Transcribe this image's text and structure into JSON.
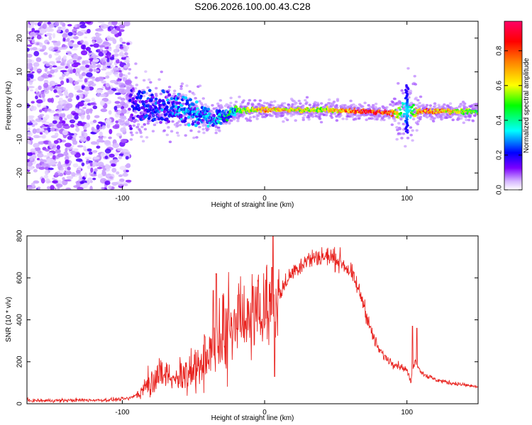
{
  "chart_data": [
    {
      "type": "heatmap",
      "title": "S206.2026.100.00.43.C28",
      "xlabel": "Height of straight line (km)",
      "ylabel": "Frequency (Hz)",
      "xlim": [
        -167,
        150
      ],
      "ylim": [
        -25,
        25
      ],
      "xticks": [
        -100,
        0,
        100
      ],
      "yticks": [
        -20,
        -10,
        0,
        10,
        20
      ],
      "grid": false,
      "colorbar": {
        "label": "Normalized spectral amplitude",
        "range": [
          0.0,
          0.97
        ],
        "ticks": [
          0.0,
          0.2,
          0.4,
          0.6,
          0.8
        ],
        "colormap": [
          "#ffffff",
          "#d6b8ff",
          "#7b00ff",
          "#0000ff",
          "#00ffff",
          "#00ff00",
          "#ffff00",
          "#ff8000",
          "#ff0000",
          "#ff0066"
        ]
      },
      "description_points": [
        {
          "height": -160,
          "freq_spread": [
            -25,
            25
          ],
          "amplitude": 0.1
        },
        {
          "height": -95,
          "freq_spread": [
            -25,
            25
          ],
          "amplitude": 0.1
        },
        {
          "height": -90,
          "freq_center": 0,
          "freq_spread": [
            -5,
            5
          ],
          "amplitude": 0.2
        },
        {
          "height": -60,
          "freq_center": -1,
          "freq_spread": [
            -4,
            4
          ],
          "amplitude": 0.3
        },
        {
          "height": -35,
          "freq_center": -4,
          "freq_spread": [
            -6,
            -2
          ],
          "amplitude": 0.3
        },
        {
          "height": -20,
          "freq_center": -1.5,
          "freq_spread": [
            -3,
            0
          ],
          "amplitude": 0.5
        },
        {
          "height": 0,
          "freq_center": -1.2,
          "freq_spread": [
            -2.5,
            0
          ],
          "amplitude": 0.75
        },
        {
          "height": 40,
          "freq_center": -1.3,
          "freq_spread": [
            -2.5,
            0
          ],
          "amplitude": 0.6
        },
        {
          "height": 70,
          "freq_center": -1.7,
          "freq_spread": [
            -3,
            -0.5
          ],
          "amplitude": 0.9
        },
        {
          "height": 87,
          "freq_center": -2.2,
          "freq_spread": [
            -3,
            -1
          ],
          "amplitude": 0.9
        },
        {
          "height": 100,
          "freq_center": -1.5,
          "freq_spread": [
            -8,
            6
          ],
          "amplitude": 0.3
        },
        {
          "height": 110,
          "freq_center": -1.7,
          "freq_spread": [
            -3,
            -0.5
          ],
          "amplitude": 0.85
        },
        {
          "height": 150,
          "freq_center": -1.8,
          "freq_spread": [
            -3,
            -0.5
          ],
          "amplitude": 0.5
        }
      ]
    },
    {
      "type": "line",
      "title": "",
      "xlabel": "Height of straight line (km)",
      "ylabel": "SNR (10 * v/v)",
      "xlim": [
        -167,
        150
      ],
      "ylim": [
        0,
        800
      ],
      "xticks": [
        -100,
        0,
        100
      ],
      "yticks": [
        0,
        200,
        400,
        600,
        800
      ],
      "grid": false,
      "series": [
        {
          "name": "SNR",
          "color": "#e8231f",
          "x": [
            -167,
            -150,
            -130,
            -110,
            -95,
            -88,
            -82,
            -75,
            -70,
            -62,
            -55,
            -48,
            -40,
            -35,
            -30,
            -25,
            -18,
            -10,
            -5,
            0,
            5,
            8,
            10,
            15,
            20,
            25,
            30,
            35,
            40,
            45,
            50,
            55,
            60,
            65,
            70,
            75,
            80,
            85,
            90,
            95,
            100,
            103,
            104,
            106,
            108,
            110,
            115,
            120,
            130,
            140,
            150
          ],
          "values": [
            15,
            15,
            17,
            18,
            25,
            50,
            90,
            120,
            130,
            135,
            145,
            175,
            210,
            270,
            320,
            350,
            390,
            415,
            440,
            450,
            460,
            470,
            510,
            580,
            630,
            660,
            685,
            695,
            700,
            700,
            690,
            670,
            630,
            560,
            470,
            340,
            260,
            220,
            195,
            180,
            160,
            100,
            180,
            200,
            180,
            150,
            130,
            115,
            100,
            90,
            80
          ]
        }
      ],
      "spikes": [
        {
          "x": -42,
          "y": 320
        },
        {
          "x": -36,
          "y": 540
        },
        {
          "x": -34,
          "y": 620
        },
        {
          "x": -18,
          "y": 520
        },
        {
          "x": -12,
          "y": 500
        },
        {
          "x": -8,
          "y": 560
        },
        {
          "x": 5,
          "y": 650
        },
        {
          "x": 6,
          "y": 800
        },
        {
          "x": 7,
          "y": 130
        },
        {
          "x": 104,
          "y": 370
        },
        {
          "x": 107,
          "y": 360
        }
      ]
    }
  ]
}
